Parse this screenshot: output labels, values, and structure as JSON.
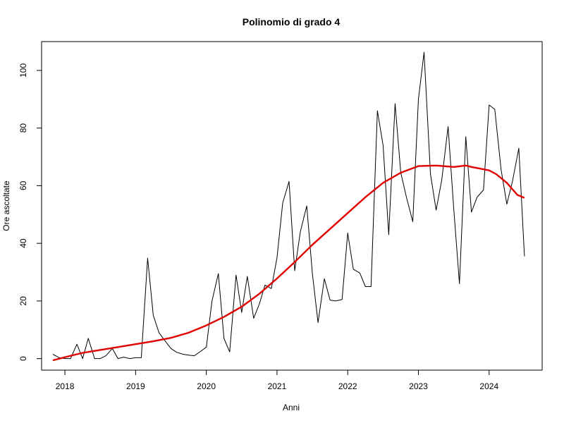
{
  "chart_data": {
    "type": "line",
    "title": "Polinomio di grado 4",
    "xlabel": "Anni",
    "ylabel": "Ore ascoltate",
    "xlim": [
      2017.67,
      2024.75
    ],
    "ylim": [
      -4,
      110
    ],
    "x_ticks": [
      2018,
      2019,
      2020,
      2021,
      2022,
      2023,
      2024
    ],
    "x_tick_labels": [
      "2018",
      "2019",
      "2020",
      "2021",
      "2022",
      "2023",
      "2024"
    ],
    "y_ticks": [
      0,
      20,
      40,
      60,
      80,
      100
    ],
    "y_tick_labels": [
      "0",
      "20",
      "40",
      "60",
      "80",
      "100"
    ],
    "grid": false,
    "series": [
      {
        "color": "#000000",
        "x": [
          2017.83,
          2017.92,
          2018.0,
          2018.08,
          2018.17,
          2018.25,
          2018.33,
          2018.42,
          2018.5,
          2018.58,
          2018.67,
          2018.75,
          2018.83,
          2018.92,
          2019.0,
          2019.08,
          2019.17,
          2019.25,
          2019.33,
          2019.42,
          2019.5,
          2019.58,
          2019.67,
          2019.75,
          2019.83,
          2019.92,
          2020.0,
          2020.08,
          2020.17,
          2020.25,
          2020.33,
          2020.42,
          2020.5,
          2020.58,
          2020.67,
          2020.75,
          2020.83,
          2020.92,
          2021.0,
          2021.08,
          2021.17,
          2021.25,
          2021.33,
          2021.42,
          2021.5,
          2021.58,
          2021.67,
          2021.75,
          2021.83,
          2021.92,
          2022.0,
          2022.08,
          2022.17,
          2022.25,
          2022.33,
          2022.42,
          2022.5,
          2022.58,
          2022.67,
          2022.75,
          2022.83,
          2022.92,
          2023.0,
          2023.08,
          2023.17,
          2023.25,
          2023.33,
          2023.42,
          2023.5,
          2023.58,
          2023.67,
          2023.75,
          2023.83,
          2023.92,
          2024.0,
          2024.08,
          2024.17,
          2024.25,
          2024.33,
          2024.42,
          2024.5
        ],
        "values": [
          1.5,
          0.3,
          0.0,
          0.0,
          5.0,
          0.0,
          7.0,
          0.0,
          0.0,
          1.0,
          3.5,
          0.0,
          0.5,
          0.0,
          0.3,
          0.3,
          34.9,
          15.0,
          9.0,
          6.0,
          3.5,
          2.2,
          1.5,
          1.2,
          1.0,
          2.5,
          4.0,
          20.0,
          29.5,
          7.0,
          2.3,
          29.0,
          16.0,
          28.5,
          14.0,
          19.0,
          25.5,
          24.3,
          35.0,
          54.0,
          61.5,
          30.5,
          44.0,
          53.0,
          29.5,
          12.5,
          27.7,
          20.3,
          20.0,
          20.5,
          43.6,
          31.0,
          29.7,
          25.0,
          25.0,
          86.0,
          74.0,
          43.0,
          88.5,
          64.6,
          56.0,
          47.5,
          90.0,
          106.3,
          64.0,
          51.5,
          62.0,
          80.5,
          52.0,
          26.0,
          77.0,
          50.8,
          56.0,
          58.5,
          88.0,
          86.5,
          65.5,
          53.6,
          61.5,
          73.0,
          35.5
        ]
      },
      {
        "color": "#e00000",
        "x": [
          2017.83,
          2018.0,
          2018.25,
          2018.5,
          2018.75,
          2019.0,
          2019.25,
          2019.5,
          2019.75,
          2020.0,
          2020.25,
          2020.5,
          2020.75,
          2021.0,
          2021.25,
          2021.5,
          2021.75,
          2022.0,
          2022.25,
          2022.5,
          2022.75,
          2023.0,
          2023.25,
          2023.5,
          2023.67,
          2023.75,
          2024.0,
          2024.1,
          2024.25,
          2024.4,
          2024.5
        ],
        "values": [
          -0.6,
          0.5,
          2.0,
          3.0,
          4.0,
          5.0,
          6.0,
          7.2,
          9.0,
          11.5,
          14.5,
          18.0,
          22.5,
          27.8,
          33.5,
          39.5,
          45.0,
          50.5,
          56.0,
          61.0,
          64.5,
          66.8,
          67.0,
          66.5,
          67.0,
          66.5,
          65.3,
          64.0,
          61.0,
          56.8,
          55.8
        ]
      }
    ]
  }
}
